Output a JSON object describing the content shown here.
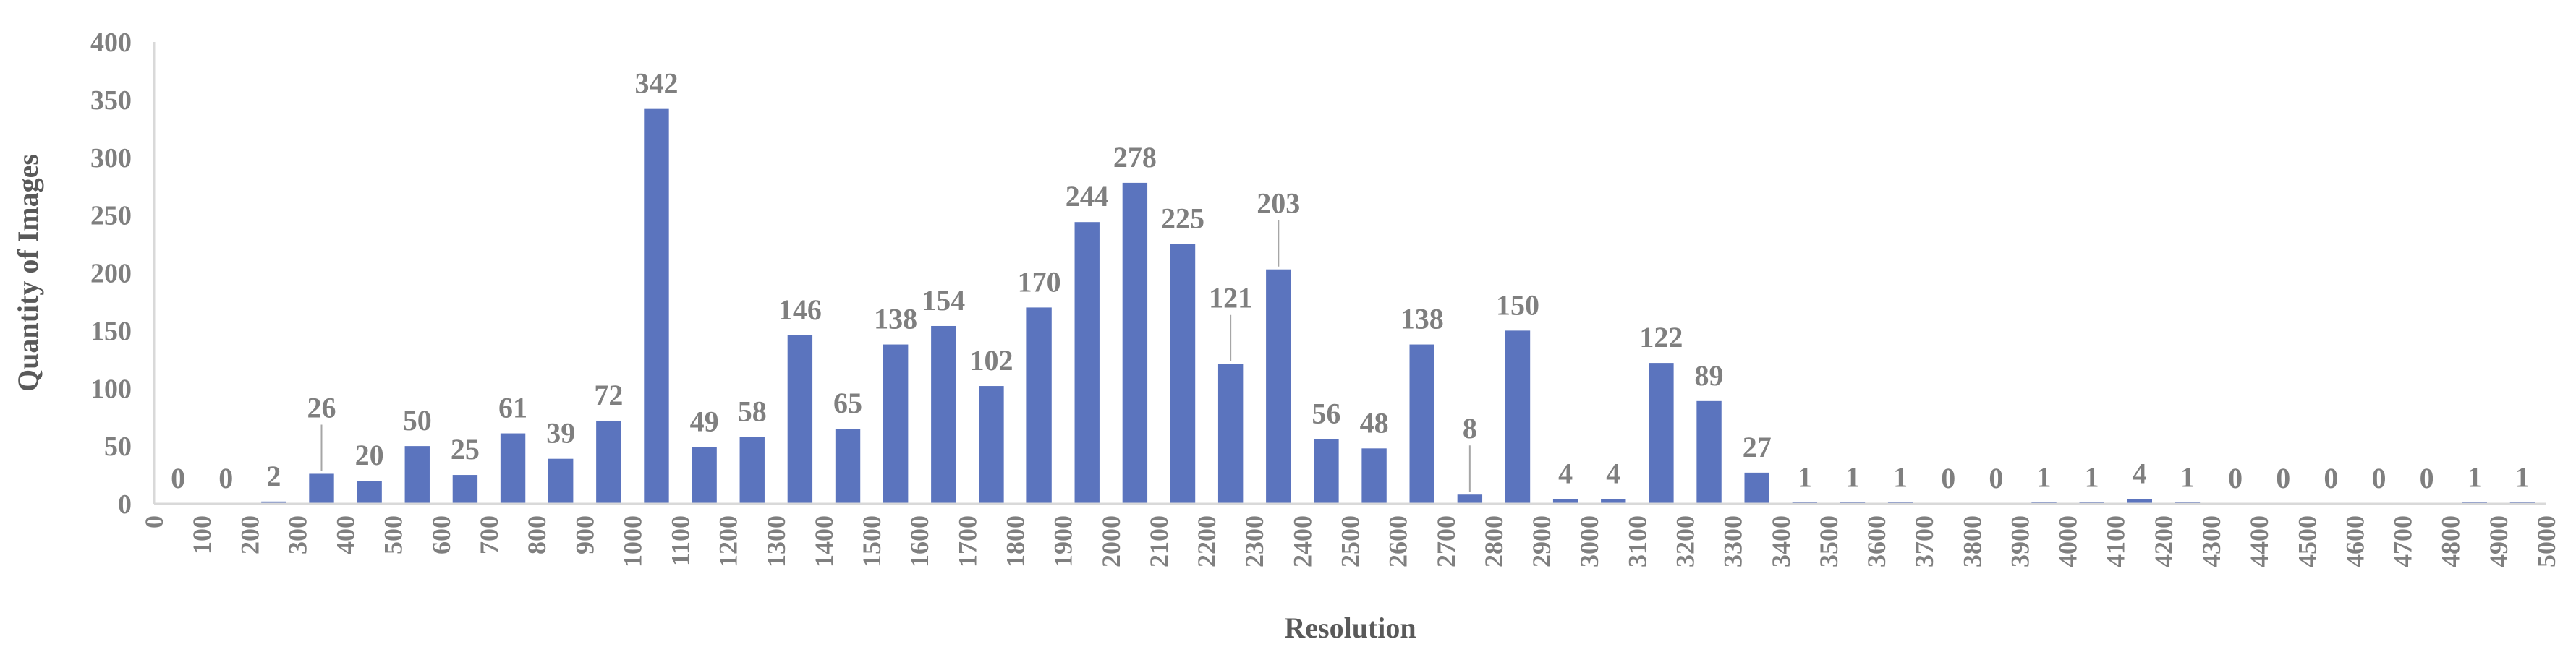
{
  "chart_data": {
    "type": "bar",
    "xlabel": "Resolution",
    "ylabel": "Quantity of Images",
    "ylim": [
      0,
      400
    ],
    "yticks": [
      "0",
      "50",
      "100",
      "150",
      "200",
      "250",
      "300",
      "350",
      "400"
    ],
    "grid": false,
    "legend": "none",
    "x_tick_labels": [
      "0",
      "100",
      "200",
      "300",
      "400",
      "500",
      "600",
      "700",
      "800",
      "900",
      "1000",
      "1100",
      "1200",
      "1300",
      "1400",
      "1500",
      "1600",
      "1700",
      "1800",
      "1900",
      "2000",
      "2100",
      "2200",
      "2300",
      "2400",
      "2500",
      "2600",
      "2700",
      "2800",
      "2900",
      "3000",
      "3100",
      "3200",
      "3300",
      "3400",
      "3500",
      "3600",
      "3700",
      "3800",
      "3900",
      "4000",
      "4100",
      "4200",
      "4300",
      "4400",
      "4500",
      "4600",
      "4700",
      "4800",
      "4900",
      "5000"
    ],
    "values": [
      0,
      0,
      2,
      26,
      20,
      50,
      25,
      61,
      39,
      72,
      342,
      49,
      58,
      146,
      65,
      138,
      154,
      102,
      170,
      244,
      278,
      225,
      121,
      203,
      56,
      48,
      138,
      8,
      150,
      4,
      4,
      122,
      89,
      27,
      1,
      1,
      1,
      0,
      0,
      1,
      1,
      4,
      1,
      0,
      0,
      0,
      0,
      0,
      1,
      1
    ],
    "colors": {
      "bar": "#5b74be",
      "text": "#7f7f7f",
      "axis": "#d9d9d9",
      "title": "#595959"
    }
  }
}
